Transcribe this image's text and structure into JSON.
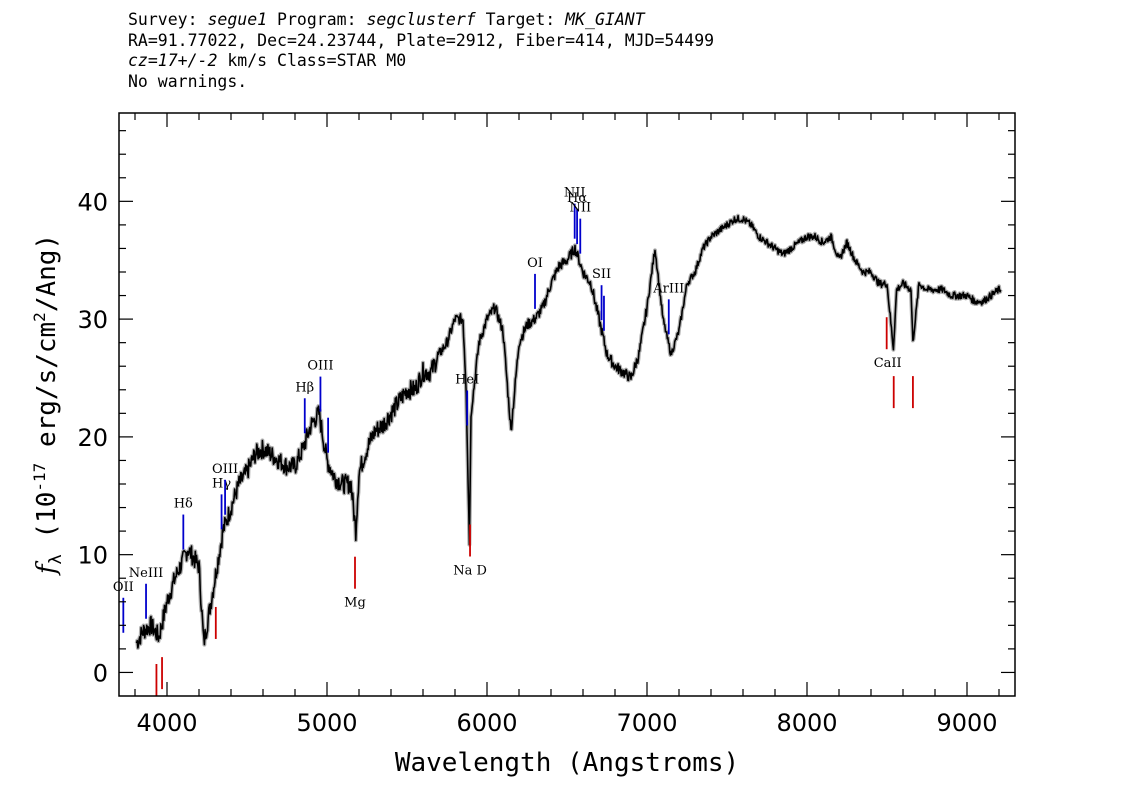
{
  "header": {
    "line1": {
      "survey_label": "Survey:",
      "survey": "segue1",
      "program_label": "Program:",
      "program": "segclusterf",
      "target_label": "Target:",
      "target": "MK_GIANT"
    },
    "line2": "RA=91.77022, Dec=24.23744, Plate=2912, Fiber=414, MJD=54499",
    "line3": {
      "cz": "cz=17+/-2",
      "rest": " km/s Class=STAR M0"
    },
    "line4": "No warnings."
  },
  "chart_data": {
    "type": "line",
    "xlabel": "Wavelength (Angstroms)",
    "ylabel": "fλ (10^-17 erg/s/cm^2/Ang)",
    "xlim": [
      3700,
      9300
    ],
    "ylim": [
      -2,
      47.5
    ],
    "x_ticks": [
      4000,
      5000,
      6000,
      7000,
      8000,
      9000
    ],
    "y_ticks": [
      0,
      10,
      20,
      30,
      40
    ],
    "grid": false,
    "series": [
      {
        "color": "#000000",
        "x": [
          3810,
          3850,
          3900,
          3950,
          4000,
          4050,
          4100,
          4130,
          4200,
          4230,
          4250,
          4300,
          4350,
          4400,
          4450,
          4500,
          4550,
          4600,
          4650,
          4700,
          4750,
          4800,
          4850,
          4900,
          4950,
          5000,
          5050,
          5100,
          5150,
          5180,
          5200,
          5250,
          5300,
          5350,
          5400,
          5450,
          5500,
          5550,
          5600,
          5650,
          5700,
          5750,
          5800,
          5850,
          5870,
          5890,
          5900,
          5950,
          6000,
          6050,
          6100,
          6150,
          6200,
          6250,
          6300,
          6350,
          6400,
          6450,
          6500,
          6550,
          6563,
          6600,
          6650,
          6700,
          6750,
          6800,
          6850,
          6900,
          6950,
          7000,
          7050,
          7100,
          7150,
          7200,
          7250,
          7300,
          7350,
          7400,
          7450,
          7500,
          7550,
          7600,
          7650,
          7700,
          7750,
          7800,
          7850,
          7900,
          7950,
          8000,
          8050,
          8100,
          8150,
          8200,
          8250,
          8300,
          8350,
          8400,
          8450,
          8500,
          8540,
          8560,
          8600,
          8650,
          8662,
          8700,
          8750,
          8800,
          8850,
          8900,
          8950,
          9000,
          9050,
          9100,
          9150,
          9200,
          9210
        ],
        "y": [
          2.5,
          3.5,
          4,
          3,
          6,
          8,
          9.5,
          10.5,
          9,
          2.5,
          4,
          8,
          12,
          14,
          16,
          17,
          18.5,
          19,
          18.5,
          18,
          17.5,
          17.5,
          19,
          21,
          22,
          18,
          16.5,
          16,
          16,
          12,
          17,
          19,
          20.5,
          21,
          22,
          23,
          24,
          24,
          25.5,
          25.5,
          27,
          28,
          30,
          30,
          24,
          11,
          22,
          28,
          30,
          31,
          29,
          20.5,
          28,
          29.5,
          30,
          31,
          33,
          34.5,
          35,
          36,
          35.5,
          34,
          33,
          30,
          27,
          26,
          25.5,
          25,
          27,
          31,
          36,
          30,
          27,
          29,
          33,
          34,
          36,
          37,
          37.5,
          38,
          38.5,
          38.5,
          38,
          37,
          36.5,
          36,
          35.5,
          36,
          36.5,
          37,
          37,
          36.5,
          37,
          35,
          36.5,
          35,
          34,
          34,
          33,
          33,
          27.5,
          32.5,
          33,
          32.5,
          28,
          33,
          32.5,
          32.5,
          32.5,
          32,
          32,
          32,
          31.5,
          31.5,
          32,
          32.5,
          32.5
        ]
      }
    ],
    "emission_lines": [
      {
        "label": "OII",
        "x": 3727
      },
      {
        "label": "NeIII",
        "x": 3869
      },
      {
        "label": "Hδ",
        "x": 4102
      },
      {
        "label": "Hγ",
        "x": 4341
      },
      {
        "label": "OIII",
        "x": 4363
      },
      {
        "label": "Hβ",
        "x": 4861
      },
      {
        "label": "OIII",
        "x": 4959
      },
      {
        "label": "",
        "x": 5007
      },
      {
        "label": "HeI",
        "x": 5876
      },
      {
        "label": "OI",
        "x": 6300
      },
      {
        "label": "NII",
        "x": 6548
      },
      {
        "label": "Hα",
        "x": 6563
      },
      {
        "label": "NII",
        "x": 6583
      },
      {
        "label": "SII",
        "x": 6716
      },
      {
        "label": "",
        "x": 6731
      },
      {
        "label": "ArIII",
        "x": 7136
      }
    ],
    "absorption_lines": [
      {
        "label": "",
        "x": 3934
      },
      {
        "label": "",
        "x": 3969
      },
      {
        "label": "",
        "x": 4305
      },
      {
        "label": "Mg",
        "x": 5175
      },
      {
        "label": "Na D",
        "x": 5894
      },
      {
        "label": "CaII",
        "x": 8498
      },
      {
        "label": "",
        "x": 8542
      },
      {
        "label": "",
        "x": 8662
      }
    ],
    "colors": {
      "emission": "#0000cc",
      "absorption": "#cc0000",
      "error": "#b0b0b0",
      "flux": "#000000"
    }
  }
}
